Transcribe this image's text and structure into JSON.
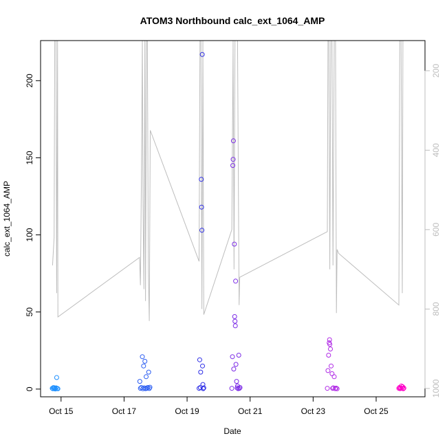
{
  "chart_data": {
    "type": "scatter",
    "title": "ATOM3 Northbound calc_ext_1064_AMP",
    "xlabel": "Date",
    "ylabel": "calc_ext_1064_AMP",
    "x_unit": "days (October)",
    "xlim": [
      14.35,
      26.55
    ],
    "ylim": [
      -5,
      226
    ],
    "x_ticks": [
      15,
      17,
      19,
      21,
      23,
      25
    ],
    "x_tick_labels": [
      "Oct 15",
      "Oct 17",
      "Oct 19",
      "Oct 21",
      "Oct 23",
      "Oct 25"
    ],
    "y_ticks": [
      0,
      50,
      100,
      150,
      200
    ],
    "secondary_axis": {
      "side": "right",
      "reversed": true,
      "ylim": [
        1021,
        124
      ],
      "ticks": [
        200,
        400,
        600,
        800,
        1000
      ],
      "color": "#bdbdbd",
      "line_color": "#bdbdbd",
      "line": [
        [
          14.73,
          690
        ],
        [
          14.78,
          620
        ],
        [
          14.8,
          124
        ],
        [
          14.84,
          124
        ],
        [
          14.86,
          760
        ],
        [
          14.89,
          124
        ],
        [
          14.9,
          820
        ],
        [
          17.49,
          670
        ],
        [
          17.52,
          740
        ],
        [
          17.55,
          480
        ],
        [
          17.58,
          124
        ],
        [
          17.6,
          520
        ],
        [
          17.63,
          750
        ],
        [
          17.66,
          124
        ],
        [
          17.68,
          780
        ],
        [
          17.71,
          124
        ],
        [
          17.74,
          124
        ],
        [
          17.77,
          700
        ],
        [
          17.8,
          830
        ],
        [
          17.83,
          350
        ],
        [
          19.38,
          680
        ],
        [
          19.41,
          124
        ],
        [
          19.44,
          124
        ],
        [
          19.47,
          800
        ],
        [
          19.5,
          124
        ],
        [
          19.53,
          814
        ],
        [
          20.42,
          600
        ],
        [
          20.46,
          124
        ],
        [
          20.49,
          700
        ],
        [
          20.52,
          124
        ],
        [
          20.56,
          124
        ],
        [
          20.6,
          124
        ],
        [
          20.65,
          790
        ],
        [
          20.67,
          720
        ],
        [
          23.45,
          605
        ],
        [
          23.47,
          124
        ],
        [
          23.5,
          124
        ],
        [
          23.53,
          700
        ],
        [
          23.56,
          124
        ],
        [
          23.6,
          124
        ],
        [
          23.63,
          690
        ],
        [
          23.67,
          124
        ],
        [
          23.71,
          124
        ],
        [
          23.74,
          810
        ],
        [
          23.76,
          650
        ],
        [
          23.81,
          660
        ],
        [
          25.72,
          790
        ],
        [
          25.75,
          124
        ],
        [
          25.79,
          124
        ],
        [
          25.83,
          760
        ],
        [
          25.85,
          124
        ]
      ]
    },
    "series": [
      {
        "color": "#1e90ff",
        "points": [
          [
            14.72,
            0.5
          ],
          [
            14.74,
            0.2
          ],
          [
            14.76,
            1.0
          ],
          [
            14.78,
            0.3
          ],
          [
            14.8,
            0.6
          ],
          [
            14.82,
            0.1
          ],
          [
            14.84,
            0.8
          ],
          [
            14.86,
            7.5
          ],
          [
            14.88,
            0.4
          ],
          [
            14.9,
            0.2
          ]
        ]
      },
      {
        "color": "#2a5cf2",
        "points": [
          [
            17.5,
            5.0
          ],
          [
            17.52,
            0.5
          ],
          [
            17.55,
            1.0
          ],
          [
            17.58,
            21.0
          ],
          [
            17.6,
            0.2
          ],
          [
            17.62,
            15.0
          ],
          [
            17.64,
            0.8
          ],
          [
            17.66,
            18.0
          ],
          [
            17.68,
            0.3
          ],
          [
            17.7,
            8.0
          ],
          [
            17.72,
            0.5
          ],
          [
            17.75,
            1.0
          ],
          [
            17.78,
            11.0
          ],
          [
            17.8,
            0.4
          ],
          [
            17.82,
            1.2
          ]
        ]
      },
      {
        "color": "#2d2de6",
        "points": [
          [
            19.38,
            0.5
          ],
          [
            19.4,
            19.0
          ],
          [
            19.42,
            1.0
          ],
          [
            19.43,
            11.0
          ],
          [
            19.45,
            136.0
          ],
          [
            19.46,
            118.0
          ],
          [
            19.47,
            103.0
          ],
          [
            19.48,
            217.0
          ],
          [
            19.49,
            15.0
          ],
          [
            19.5,
            3.0
          ],
          [
            19.51,
            0.3
          ],
          [
            19.53,
            0.8
          ]
        ]
      },
      {
        "color": "#7b2ae6",
        "points": [
          [
            20.42,
            0.5
          ],
          [
            20.44,
            21.0
          ],
          [
            20.45,
            145.0
          ],
          [
            20.46,
            149.0
          ],
          [
            20.47,
            161.0
          ],
          [
            20.48,
            13.0
          ],
          [
            20.5,
            94.0
          ],
          [
            20.51,
            47.0
          ],
          [
            20.52,
            44.0
          ],
          [
            20.53,
            41.0
          ],
          [
            20.54,
            70.0
          ],
          [
            20.55,
            16.0
          ],
          [
            20.57,
            5.0
          ],
          [
            20.59,
            0.8
          ],
          [
            20.6,
            2.0
          ],
          [
            20.62,
            0.3
          ],
          [
            20.64,
            22.0
          ],
          [
            20.66,
            0.5
          ],
          [
            20.68,
            1.0
          ]
        ]
      },
      {
        "color": "#b02ae6",
        "points": [
          [
            23.45,
            0.5
          ],
          [
            23.47,
            12.0
          ],
          [
            23.49,
            22.0
          ],
          [
            23.51,
            30.0
          ],
          [
            23.52,
            32.0
          ],
          [
            23.53,
            29.0
          ],
          [
            23.55,
            26.0
          ],
          [
            23.57,
            15.0
          ],
          [
            23.6,
            10.0
          ],
          [
            23.62,
            0.5
          ],
          [
            23.64,
            0.8
          ],
          [
            23.67,
            8.0
          ],
          [
            23.7,
            0.3
          ],
          [
            23.73,
            0.6
          ],
          [
            23.76,
            0.2
          ]
        ]
      },
      {
        "color": "#ff00c8",
        "points": [
          [
            25.72,
            0.5
          ],
          [
            25.74,
            1.0
          ],
          [
            25.76,
            0.3
          ],
          [
            25.78,
            0.8
          ],
          [
            25.8,
            2.0
          ],
          [
            25.82,
            0.5
          ],
          [
            25.84,
            1.5
          ],
          [
            25.86,
            0.2
          ],
          [
            25.88,
            0.6
          ]
        ]
      }
    ]
  }
}
